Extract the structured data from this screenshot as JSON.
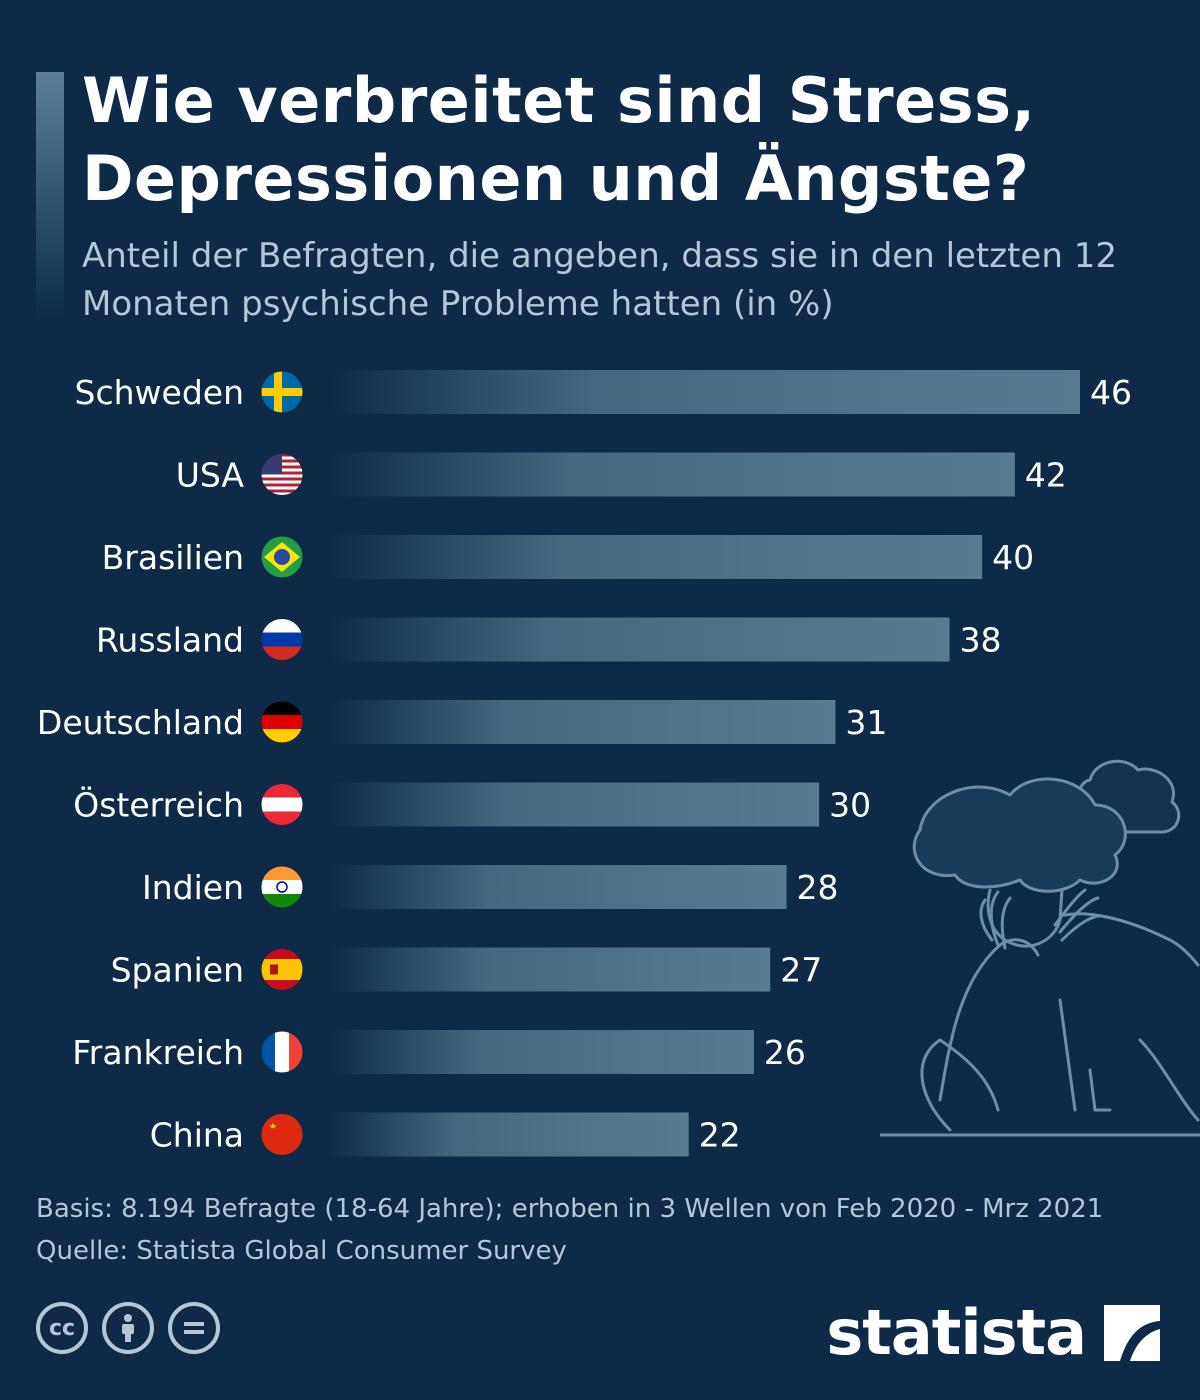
{
  "header": {
    "title": "Wie verbreitet sind Stress, Depressionen und Ängste?",
    "subtitle": "Anteil der Befragten, die angeben, dass sie in den letzten 12 Monaten psychische Probleme hatten (in %)"
  },
  "chart_data": {
    "type": "bar",
    "orientation": "horizontal",
    "categories": [
      "Schweden",
      "USA",
      "Brasilien",
      "Russland",
      "Deutschland",
      "Österreich",
      "Indien",
      "Spanien",
      "Frankreich",
      "China"
    ],
    "values": [
      46,
      42,
      40,
      38,
      31,
      30,
      28,
      27,
      26,
      22
    ],
    "flags": [
      "sweden-flag-icon",
      "usa-flag-icon",
      "brazil-flag-icon",
      "russia-flag-icon",
      "germany-flag-icon",
      "austria-flag-icon",
      "india-flag-icon",
      "spain-flag-icon",
      "france-flag-icon",
      "china-flag-icon"
    ],
    "xlim": [
      0,
      46
    ],
    "grid": false,
    "legend": "none",
    "bar_color": "#5a7b8f"
  },
  "footer": {
    "basis": "Basis: 8.194 Befragte (18-64 Jahre); erhoben in 3 Wellen von Feb 2020 - Mrz 2021",
    "source": "Quelle: Statista Global Consumer Survey",
    "brand": "statista"
  },
  "license_icons": [
    "cc-icon",
    "attribution-icon",
    "no-derivatives-icon"
  ],
  "colors": {
    "background": "#0f2a47",
    "bar": "#5a7b8f",
    "text_muted": "#b7c6d3"
  }
}
